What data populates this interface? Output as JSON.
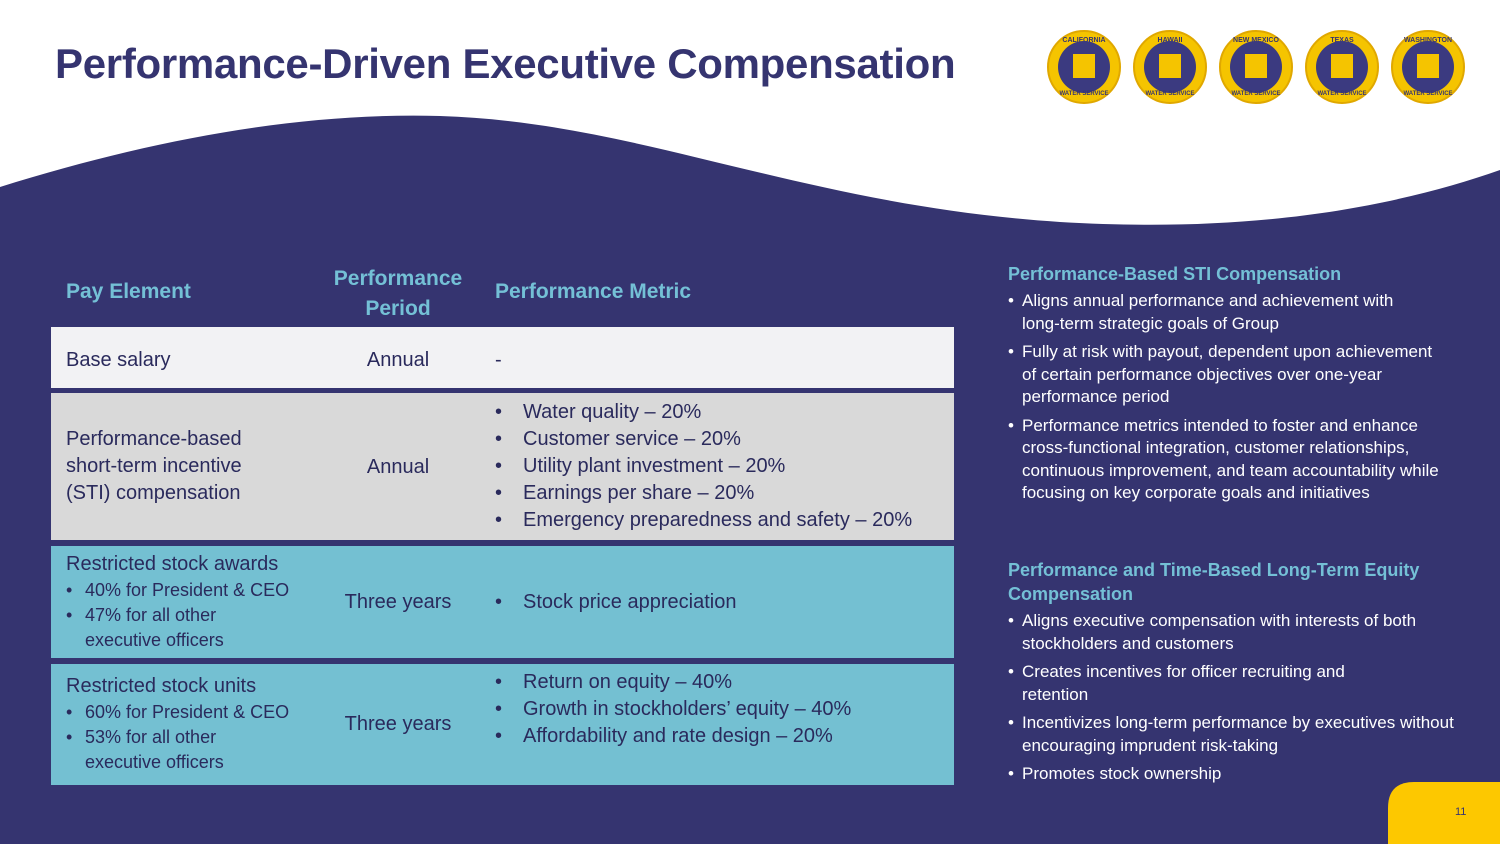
{
  "title": "Performance-Driven Executive Compensation",
  "logos": [
    {
      "top": "CALIFORNIA",
      "bottom": "WATER SERVICE",
      "icon": "california-map-icon"
    },
    {
      "top": "HAWAII",
      "bottom": "WATER SERVICE",
      "icon": "hawaii-map-icon"
    },
    {
      "top": "NEW MEXICO",
      "bottom": "WATER SERVICE",
      "icon": "new-mexico-map-icon"
    },
    {
      "top": "TEXAS",
      "bottom": "WATER SERVICE",
      "icon": "texas-map-icon"
    },
    {
      "top": "WASHINGTON",
      "bottom": "WATER SERVICE",
      "icon": "washington-map-icon"
    }
  ],
  "table": {
    "headers": {
      "pay_element": "Pay Element",
      "period": "Performance Period",
      "metric": "Performance Metric"
    },
    "rows": [
      {
        "element": "Base salary",
        "period": "Annual",
        "metric_text": "-"
      },
      {
        "element": "Performance-based short-term incentive (STI) compensation",
        "period": "Annual",
        "metrics": [
          "Water quality – 20%",
          "Customer service – 20%",
          "Utility plant investment – 20%",
          "Earnings per share – 20%",
          "Emergency preparedness and safety – 20%"
        ]
      },
      {
        "element": "Restricted stock awards",
        "sub": [
          "40% for President & CEO",
          "47% for all other executive officers"
        ],
        "period": "Three years",
        "metrics": [
          "Stock price appreciation"
        ]
      },
      {
        "element": "Restricted stock units",
        "sub": [
          "60% for President & CEO",
          "53% for all other executive officers"
        ],
        "period": "Three years",
        "metrics": [
          "Return on equity – 40%",
          "Growth in stockholders’ equity – 40%",
          "Affordability and rate design – 20%"
        ]
      }
    ]
  },
  "sidebar": {
    "sti": {
      "heading": "Performance-Based STI Compensation",
      "bullets": [
        "Aligns annual performance and achievement with long-term strategic goals of Group",
        "Fully at risk with payout, dependent upon achievement of certain performance objectives over one-year performance period",
        "Performance metrics intended to foster and enhance cross-functional integration, customer relationships, continuous improvement, and team accountability while focusing on key corporate goals and initiatives"
      ]
    },
    "lti": {
      "heading": "Performance and Time-Based Long-Term Equity Compensation",
      "bullets": [
        "Aligns executive compensation with interests of both stockholders and customers",
        "Creates incentives for officer recruiting and retention",
        "Incentivizes long-term performance by executives without encouraging imprudent risk-taking",
        "Promotes stock ownership"
      ]
    }
  },
  "page_number": "11",
  "colors": {
    "navy": "#353470",
    "teal": "#74c0d2",
    "gold": "#f5c400"
  }
}
